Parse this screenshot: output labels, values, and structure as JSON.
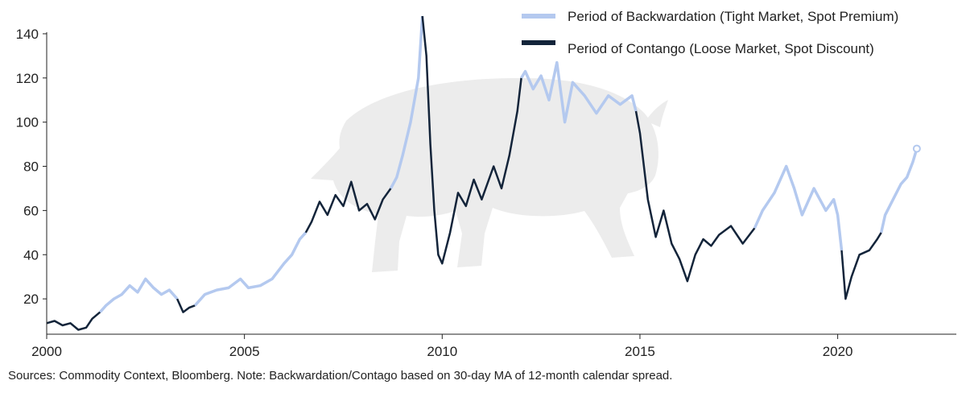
{
  "chart_data": {
    "type": "line",
    "title": "",
    "xlabel": "",
    "ylabel": "",
    "xlim": [
      2000,
      2023
    ],
    "ylim": [
      4,
      148
    ],
    "x_ticks": [
      2000,
      2005,
      2010,
      2015,
      2020
    ],
    "y_ticks": [
      20,
      40,
      60,
      80,
      100,
      120,
      140
    ],
    "grid": false,
    "legend_position": "top-right",
    "colors": {
      "backwardation": "#b4c9ef",
      "contango": "#13243a",
      "watermark": "#ececec"
    },
    "series": [
      {
        "name": "Period of Backwardation (Tight Market, Spot Premium)",
        "key": "backwardation"
      },
      {
        "name": "Period of Contango (Loose Market, Spot Discount)",
        "key": "contango"
      }
    ],
    "points": [
      [
        2000.0,
        9,
        "c"
      ],
      [
        2000.2,
        10,
        "c"
      ],
      [
        2000.4,
        8,
        "c"
      ],
      [
        2000.6,
        9,
        "c"
      ],
      [
        2000.8,
        6,
        "c"
      ],
      [
        2001.0,
        7,
        "c"
      ],
      [
        2001.15,
        11,
        "c"
      ],
      [
        2001.35,
        14,
        "c"
      ],
      [
        2001.5,
        17,
        "b"
      ],
      [
        2001.7,
        20,
        "b"
      ],
      [
        2001.9,
        22,
        "b"
      ],
      [
        2002.1,
        26,
        "b"
      ],
      [
        2002.3,
        23,
        "b"
      ],
      [
        2002.5,
        29,
        "b"
      ],
      [
        2002.7,
        25,
        "b"
      ],
      [
        2002.9,
        22,
        "b"
      ],
      [
        2003.1,
        24,
        "b"
      ],
      [
        2003.3,
        20,
        "b"
      ],
      [
        2003.45,
        14,
        "c"
      ],
      [
        2003.6,
        16,
        "c"
      ],
      [
        2003.75,
        17,
        "c"
      ],
      [
        2004.0,
        22,
        "b"
      ],
      [
        2004.3,
        24,
        "b"
      ],
      [
        2004.6,
        25,
        "b"
      ],
      [
        2004.9,
        29,
        "b"
      ],
      [
        2005.1,
        25,
        "b"
      ],
      [
        2005.4,
        26,
        "b"
      ],
      [
        2005.7,
        29,
        "b"
      ],
      [
        2006.0,
        36,
        "b"
      ],
      [
        2006.2,
        40,
        "b"
      ],
      [
        2006.4,
        47,
        "b"
      ],
      [
        2006.55,
        50,
        "b"
      ],
      [
        2006.7,
        55,
        "c"
      ],
      [
        2006.9,
        64,
        "c"
      ],
      [
        2007.1,
        58,
        "c"
      ],
      [
        2007.3,
        67,
        "c"
      ],
      [
        2007.5,
        62,
        "c"
      ],
      [
        2007.7,
        73,
        "c"
      ],
      [
        2007.9,
        60,
        "c"
      ],
      [
        2008.1,
        63,
        "c"
      ],
      [
        2008.3,
        56,
        "c"
      ],
      [
        2008.5,
        65,
        "c"
      ],
      [
        2008.7,
        70,
        "c"
      ],
      [
        2008.85,
        75,
        "b"
      ],
      [
        2009.0,
        85,
        "b"
      ],
      [
        2009.2,
        100,
        "b"
      ],
      [
        2009.4,
        120,
        "b"
      ],
      [
        2009.5,
        148,
        "b"
      ],
      [
        2009.6,
        130,
        "c"
      ],
      [
        2009.7,
        90,
        "c"
      ],
      [
        2009.8,
        60,
        "c"
      ],
      [
        2009.9,
        40,
        "c"
      ],
      [
        2010.0,
        36,
        "c"
      ],
      [
        2010.2,
        50,
        "c"
      ],
      [
        2010.4,
        68,
        "c"
      ],
      [
        2010.6,
        62,
        "c"
      ],
      [
        2010.8,
        74,
        "c"
      ],
      [
        2011.0,
        65,
        "c"
      ],
      [
        2011.3,
        80,
        "c"
      ],
      [
        2011.5,
        70,
        "c"
      ],
      [
        2011.7,
        85,
        "c"
      ],
      [
        2011.9,
        105,
        "c"
      ],
      [
        2012.0,
        120,
        "c"
      ],
      [
        2012.1,
        123,
        "b"
      ],
      [
        2012.3,
        115,
        "b"
      ],
      [
        2012.5,
        121,
        "b"
      ],
      [
        2012.7,
        110,
        "b"
      ],
      [
        2012.9,
        127,
        "b"
      ],
      [
        2013.1,
        100,
        "b"
      ],
      [
        2013.3,
        118,
        "b"
      ],
      [
        2013.6,
        112,
        "b"
      ],
      [
        2013.9,
        104,
        "b"
      ],
      [
        2014.2,
        112,
        "b"
      ],
      [
        2014.5,
        108,
        "b"
      ],
      [
        2014.8,
        112,
        "b"
      ],
      [
        2014.9,
        105,
        "b"
      ],
      [
        2015.0,
        95,
        "c"
      ],
      [
        2015.2,
        65,
        "c"
      ],
      [
        2015.4,
        48,
        "c"
      ],
      [
        2015.6,
        60,
        "c"
      ],
      [
        2015.8,
        45,
        "c"
      ],
      [
        2016.0,
        38,
        "c"
      ],
      [
        2016.2,
        28,
        "c"
      ],
      [
        2016.4,
        40,
        "c"
      ],
      [
        2016.6,
        47,
        "c"
      ],
      [
        2016.8,
        44,
        "c"
      ],
      [
        2017.0,
        49,
        "c"
      ],
      [
        2017.3,
        53,
        "c"
      ],
      [
        2017.6,
        45,
        "c"
      ],
      [
        2017.9,
        52,
        "c"
      ],
      [
        2018.1,
        60,
        "b"
      ],
      [
        2018.4,
        68,
        "b"
      ],
      [
        2018.7,
        80,
        "b"
      ],
      [
        2018.9,
        70,
        "b"
      ],
      [
        2019.1,
        58,
        "b"
      ],
      [
        2019.4,
        70,
        "b"
      ],
      [
        2019.7,
        60,
        "b"
      ],
      [
        2019.9,
        65,
        "b"
      ],
      [
        2020.0,
        58,
        "b"
      ],
      [
        2020.1,
        42,
        "b"
      ],
      [
        2020.2,
        20,
        "c"
      ],
      [
        2020.35,
        30,
        "c"
      ],
      [
        2020.55,
        40,
        "c"
      ],
      [
        2020.8,
        42,
        "c"
      ],
      [
        2021.0,
        47,
        "c"
      ],
      [
        2021.1,
        50,
        "c"
      ],
      [
        2021.2,
        58,
        "b"
      ],
      [
        2021.4,
        65,
        "b"
      ],
      [
        2021.6,
        72,
        "b"
      ],
      [
        2021.75,
        75,
        "b"
      ],
      [
        2021.9,
        82,
        "b"
      ],
      [
        2022.0,
        88,
        "b"
      ]
    ]
  },
  "footer": {
    "source_note": "Sources: Commodity Context, Bloomberg. Note: Backwardation/Contago based on 30-day MA of 12-month calendar spread."
  }
}
